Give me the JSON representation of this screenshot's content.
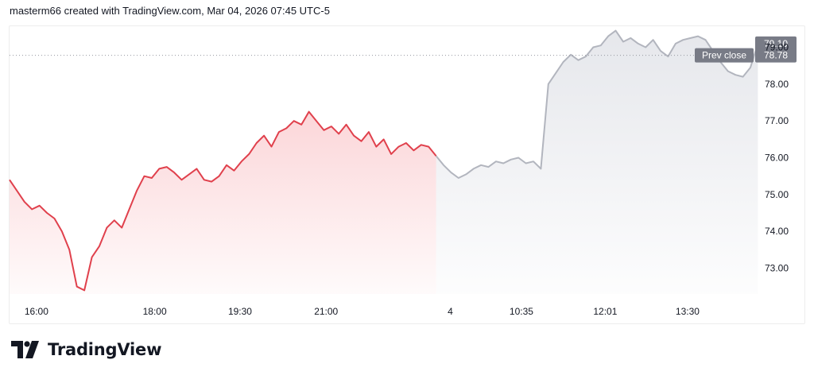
{
  "caption": "masterm66 created with TradingView.com, Mar 04, 2026 07:45 UTC-5",
  "brand": {
    "name": "TradingView",
    "logo_icon": "tradingview-logo-icon"
  },
  "colors": {
    "down_line": "#e0404c",
    "down_fill": "#f7a4aa",
    "extended_line": "#b2b5be",
    "extended_fill": "#d1d4dc",
    "prev_close_line": "#9598a1",
    "label_bg": "#787b86",
    "text": "#131722"
  },
  "chart_data": {
    "type": "area",
    "ylim": [
      72.3,
      79.55
    ],
    "yticks": [
      "73.00",
      "74.00",
      "75.00",
      "76.00",
      "77.00",
      "78.00",
      "79.00"
    ],
    "xticks": [
      {
        "label": "16:00",
        "idx": 3.6
      },
      {
        "label": "18:00",
        "idx": 19.4
      },
      {
        "label": "19:30",
        "idx": 30.8
      },
      {
        "label": "21:00",
        "idx": 42.3
      },
      {
        "label": "4",
        "idx": 58.9
      },
      {
        "label": "10:35",
        "idx": 68.4
      },
      {
        "label": "12:01",
        "idx": 79.6
      },
      {
        "label": "13:30",
        "idx": 90.6
      }
    ],
    "prev_close": {
      "label": "Prev close",
      "value": 78.78,
      "value_label": "78.78"
    },
    "last_price": {
      "value": 79.1,
      "value_label": "79.10"
    },
    "series": [
      {
        "session": "regular",
        "values": [
          75.4,
          75.1,
          74.8,
          74.6,
          74.7,
          74.5,
          74.35,
          74.0,
          73.5,
          72.5,
          72.4,
          73.3,
          73.6,
          74.1,
          74.3,
          74.1,
          74.6,
          75.1,
          75.5,
          75.45,
          75.7,
          75.75,
          75.6,
          75.4,
          75.55,
          75.7,
          75.4,
          75.35,
          75.5,
          75.8,
          75.65,
          75.9,
          76.1,
          76.4,
          76.6,
          76.3,
          76.7,
          76.8,
          77.0,
          76.9,
          77.25,
          77.0,
          76.75,
          76.85,
          76.65,
          76.9,
          76.6,
          76.45,
          76.7,
          76.3,
          76.5,
          76.1,
          76.3,
          76.4,
          76.2,
          76.35,
          76.3,
          76.05
        ]
      },
      {
        "session": "extended",
        "values": [
          75.8,
          75.6,
          75.45,
          75.55,
          75.7,
          75.8,
          75.75,
          75.9,
          75.85,
          75.95,
          76.0,
          75.85,
          75.9,
          75.7,
          78.0,
          78.3,
          78.6,
          78.8,
          78.65,
          78.75,
          79.0,
          79.05,
          79.3,
          79.45,
          79.15,
          79.25,
          79.1,
          79.0,
          79.2,
          78.9,
          78.75,
          79.1,
          79.2,
          79.25,
          79.3,
          79.2,
          78.9,
          78.6,
          78.35,
          78.25,
          78.2,
          78.45,
          79.1
        ]
      }
    ]
  }
}
